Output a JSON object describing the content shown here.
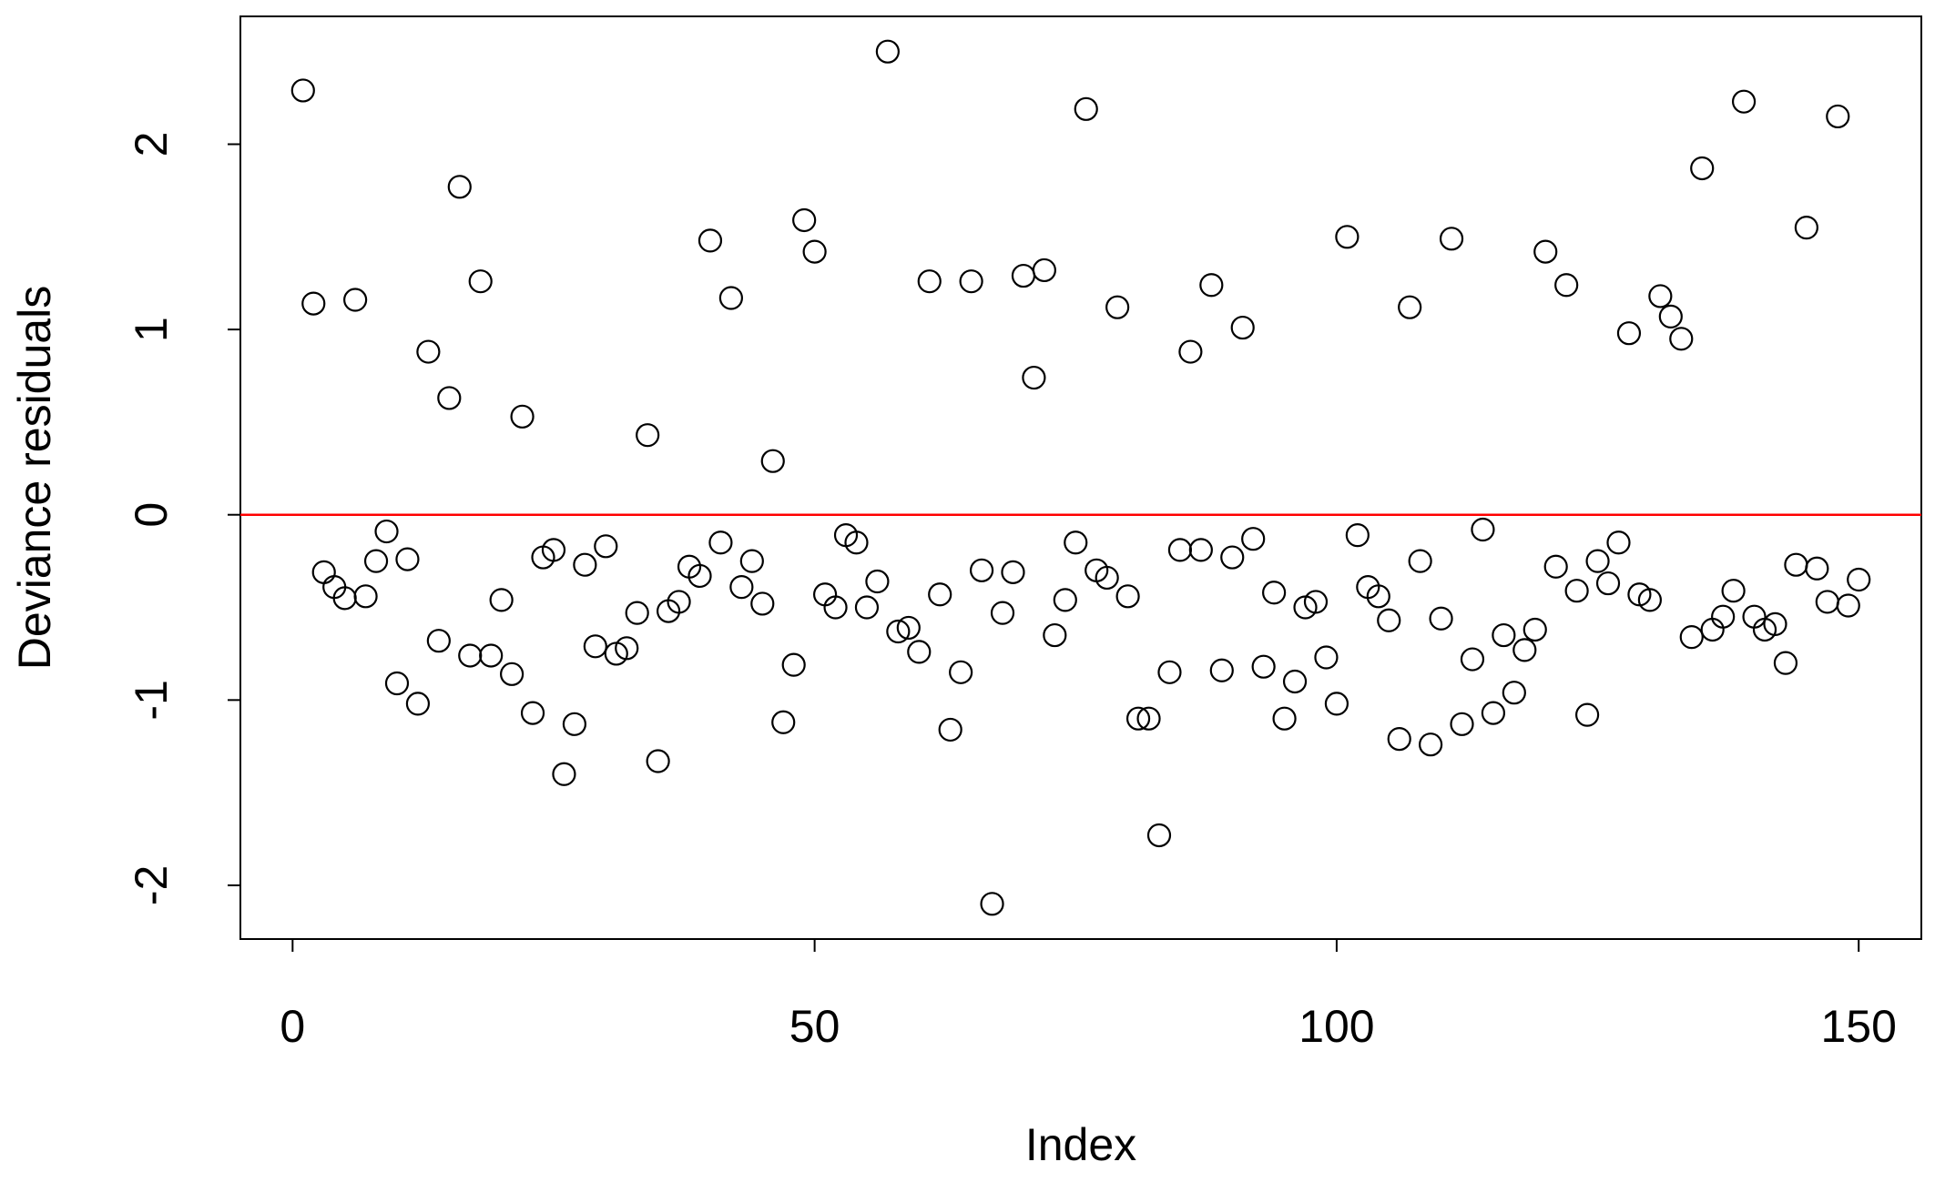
{
  "chart_data": {
    "type": "scatter",
    "xlabel": "Index",
    "ylabel": "Deviance residuals",
    "xlim": [
      -5,
      156
    ],
    "ylim": [
      -2.29,
      2.69
    ],
    "xticks": [
      0,
      50,
      100,
      150
    ],
    "yticks": [
      -2,
      -1,
      0,
      1,
      2
    ],
    "reference_line": {
      "value": 0,
      "color": "#ff0000"
    },
    "series": [
      {
        "color": "#000000",
        "x": [
          1,
          2,
          3,
          4,
          5,
          6,
          7,
          8,
          9,
          10,
          11,
          12,
          13,
          14,
          15,
          16,
          17,
          18,
          19,
          20,
          21,
          22,
          23,
          24,
          25,
          26,
          27,
          28,
          29,
          30,
          31,
          32,
          33,
          34,
          35,
          36,
          37,
          38,
          39,
          40,
          41,
          42,
          43,
          44,
          45,
          46,
          47,
          48,
          49,
          50,
          51,
          52,
          53,
          54,
          55,
          56,
          57,
          58,
          59,
          60,
          61,
          62,
          63,
          64,
          65,
          66,
          67,
          68,
          69,
          70,
          71,
          72,
          73,
          74,
          75,
          76,
          77,
          78,
          79,
          80,
          81,
          82,
          83,
          84,
          85,
          86,
          87,
          88,
          89,
          90,
          91,
          92,
          93,
          94,
          95,
          96,
          97,
          98,
          99,
          100,
          101,
          102,
          103,
          104,
          105,
          106,
          107,
          108,
          109,
          110,
          111,
          112,
          113,
          114,
          115,
          116,
          117,
          118,
          119,
          120,
          121,
          122,
          123,
          124,
          125,
          126,
          127,
          128,
          129,
          130,
          131,
          132,
          133,
          134,
          135,
          136,
          137,
          138,
          139,
          140,
          141,
          142,
          143,
          144,
          145,
          146,
          147,
          148,
          149,
          150
        ],
        "values": [
          2.29,
          1.14,
          -0.31,
          -0.39,
          -0.45,
          1.16,
          -0.44,
          -0.25,
          -0.09,
          -0.91,
          -0.24,
          -1.02,
          0.88,
          -0.68,
          0.63,
          1.77,
          -0.76,
          1.26,
          -0.76,
          -0.46,
          -0.86,
          0.53,
          -1.07,
          -0.23,
          -0.19,
          -1.4,
          -1.13,
          -0.27,
          -0.71,
          -0.17,
          -0.75,
          -0.72,
          -0.53,
          0.43,
          -1.33,
          -0.52,
          -0.47,
          -0.28,
          -0.33,
          1.48,
          -0.15,
          1.17,
          -0.39,
          -0.25,
          -0.48,
          0.29,
          -1.12,
          -0.81,
          1.59,
          1.42,
          -0.43,
          -0.5,
          -0.11,
          -0.15,
          -0.5,
          -0.36,
          2.5,
          -0.63,
          -0.61,
          -0.74,
          1.26,
          -0.43,
          -1.16,
          -0.85,
          1.26,
          -0.3,
          -2.1,
          -0.53,
          -0.31,
          1.29,
          0.74,
          1.32,
          -0.65,
          -0.46,
          -0.15,
          2.19,
          -0.3,
          -0.34,
          1.12,
          -0.44,
          -1.1,
          -1.1,
          -1.73,
          -0.85,
          -0.19,
          0.88,
          -0.19,
          1.24,
          -0.84,
          -0.23,
          1.01,
          -0.13,
          -0.82,
          -0.42,
          -1.1,
          -0.9,
          -0.5,
          -0.47,
          -0.77,
          -1.02,
          1.5,
          -0.11,
          -0.39,
          -0.44,
          -0.57,
          -1.21,
          1.12,
          -0.25,
          -1.24,
          -0.56,
          1.49,
          -1.13,
          -0.78,
          -0.08,
          -1.07,
          -0.65,
          -0.96,
          -0.73,
          -0.62,
          1.42,
          -0.28,
          1.24,
          -0.41,
          -1.08,
          -0.25,
          -0.37,
          -0.15,
          0.98,
          -0.43,
          -0.46,
          1.18,
          1.07,
          0.95,
          -0.66,
          1.87,
          -0.62,
          -0.55,
          -0.41,
          2.23,
          -0.55,
          -0.62,
          -0.59,
          -0.8,
          -0.27,
          1.55,
          -0.29,
          -0.47,
          2.15,
          -0.49,
          -0.35
        ]
      }
    ]
  }
}
